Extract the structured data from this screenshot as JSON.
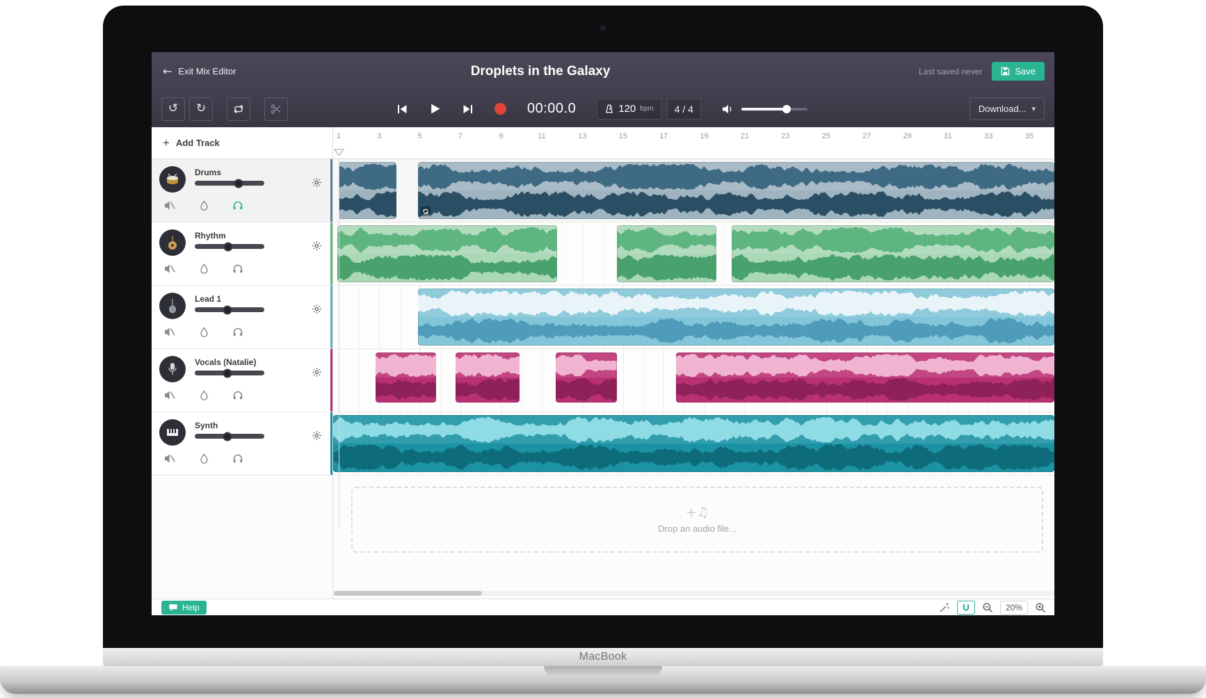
{
  "device": {
    "brand_label": "MacBook"
  },
  "colors": {
    "accent_green": "#2bb493",
    "record_red": "#e0443a",
    "header_bg_top": "#4b4757",
    "header_bg_bottom": "#393643"
  },
  "icons": {
    "exit_arrow": "←",
    "undo": "↺",
    "redo": "↻",
    "download_caret": "▾",
    "add_plus": "+",
    "dropzone_glyph": "+♫"
  },
  "header": {
    "exit_label": "Exit Mix Editor",
    "title": "Droplets in the Galaxy",
    "last_saved": "Last saved never",
    "save_label": "Save"
  },
  "transport": {
    "time_display": "00:00.0",
    "tempo_value": "120",
    "tempo_unit": "bpm",
    "time_signature": "4 / 4",
    "master_volume_percent": 68
  },
  "toolbar": {
    "download_label": "Download..."
  },
  "sidebar": {
    "add_track_label": "Add Track"
  },
  "ruler": {
    "labels": [
      "1",
      "3",
      "5",
      "7",
      "9",
      "11",
      "13",
      "15",
      "17",
      "19",
      "21",
      "23",
      "25",
      "27",
      "29",
      "31",
      "33",
      "35"
    ],
    "bars_per_label": 2
  },
  "tracks": [
    {
      "name": "Drums",
      "icon": "drums-avatar-icon",
      "selected": true,
      "volume_percent": 63,
      "monitor_active": true,
      "accent": "#5d8196",
      "clip_bg": "#9fb4c0",
      "wave_top": "#3f6a84",
      "wave_bottom": "#2a4e64",
      "clips": [
        {
          "start_bar": 1.0,
          "end_bar": 3.85
        },
        {
          "start_bar": 4.9,
          "end_bar": 36.6,
          "loop_badge": true
        }
      ]
    },
    {
      "name": "Rhythm",
      "icon": "guitar-avatar-icon",
      "selected": false,
      "volume_percent": 48,
      "monitor_active": false,
      "accent": "#63b584",
      "clip_bg": "#abd8b7",
      "wave_top": "#5eb57f",
      "wave_bottom": "#49a26e",
      "clips": [
        {
          "start_bar": 0.93,
          "end_bar": 11.75
        },
        {
          "start_bar": 14.7,
          "end_bar": 19.6
        },
        {
          "start_bar": 20.35,
          "end_bar": 36.6
        }
      ]
    },
    {
      "name": "Lead 1",
      "icon": "bass-avatar-icon",
      "selected": false,
      "volume_percent": 47,
      "monitor_active": false,
      "accent": "#5fb0c9",
      "clip_bg": "#84c6d9",
      "wave_top": "#e9f4f8",
      "wave_bottom": "#4e9cb9",
      "clips": [
        {
          "start_bar": 4.9,
          "end_bar": 36.6
        }
      ]
    },
    {
      "name": "Vocals (Natalie)",
      "icon": "microphone-avatar-icon",
      "selected": false,
      "volume_percent": 47,
      "monitor_active": false,
      "accent": "#b5306f",
      "clip_bg": "#ba3173",
      "wave_top": "#f0b4d1",
      "wave_bottom": "#8e2158",
      "clips": [
        {
          "start_bar": 2.8,
          "end_bar": 5.8
        },
        {
          "start_bar": 6.75,
          "end_bar": 9.9
        },
        {
          "start_bar": 11.7,
          "end_bar": 14.7
        },
        {
          "start_bar": 17.6,
          "end_bar": 36.6
        }
      ]
    },
    {
      "name": "Synth",
      "icon": "piano-avatar-icon",
      "selected": false,
      "volume_percent": 47,
      "monitor_active": false,
      "accent": "#1b93a4",
      "clip_bg": "#1b93a4",
      "wave_top": "#90dce5",
      "wave_bottom": "#0e6b7a",
      "clips": [
        {
          "start_bar": 0.72,
          "end_bar": 36.6
        }
      ]
    }
  ],
  "dropzone": {
    "label": "Drop an audio file..."
  },
  "statusbar": {
    "help_label": "Help",
    "zoom_level": "20%"
  }
}
